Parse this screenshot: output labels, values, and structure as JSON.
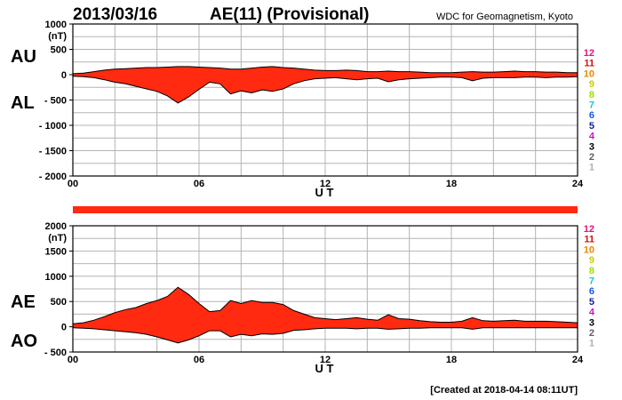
{
  "header": {
    "date": "2013/03/16",
    "title": "AE(11) (Provisional)",
    "source": "WDC for Geomagnetism, Kyoto"
  },
  "footer": {
    "created": "[Created at 2018-04-14 08:11UT]"
  },
  "colors": {
    "fill": "#ff2a10",
    "line": "#000000",
    "grid": "#b4b4b4",
    "band": "#ff2a10"
  },
  "station_legend": [
    {
      "label": "12",
      "color": "#e0157a"
    },
    {
      "label": "11",
      "color": "#d01010"
    },
    {
      "label": "10",
      "color": "#e68a00"
    },
    {
      "label": "9",
      "color": "#d4c800"
    },
    {
      "label": "8",
      "color": "#9be000"
    },
    {
      "label": "7",
      "color": "#14c8dc"
    },
    {
      "label": "6",
      "color": "#1a5ae6"
    },
    {
      "label": "5",
      "color": "#1a1aa0"
    },
    {
      "label": "4",
      "color": "#c814c8"
    },
    {
      "label": "3",
      "color": "#000000"
    },
    {
      "label": "2",
      "color": "#606060"
    },
    {
      "label": "1",
      "color": "#b0b0b0"
    }
  ],
  "chart_data": [
    {
      "type": "area",
      "panel": "AU/AL",
      "upper_label": "AU",
      "lower_label": "AL",
      "unit": "(nT)",
      "xlabel": "U T",
      "xlim": [
        0,
        24
      ],
      "xticks": [
        "00",
        "06",
        "12",
        "18",
        "24"
      ],
      "ylim": [
        -2000,
        1000
      ],
      "yticks": [
        "1000",
        "500",
        "0",
        "- 500",
        "- 1000",
        "- 1500",
        "- 2000"
      ],
      "ytick_values": [
        1000,
        500,
        0,
        -500,
        -1000,
        -1500,
        -2000
      ],
      "grid": true,
      "x": [
        0,
        0.5,
        1,
        1.5,
        2,
        2.5,
        3,
        3.5,
        4,
        4.5,
        5,
        5.5,
        6,
        6.5,
        7,
        7.5,
        8,
        8.5,
        9,
        9.5,
        10,
        10.5,
        11,
        11.5,
        12,
        12.5,
        13,
        13.5,
        14,
        14.5,
        15,
        15.5,
        16,
        16.5,
        17,
        17.5,
        18,
        18.5,
        19,
        19.5,
        20,
        20.5,
        21,
        21.5,
        22,
        22.5,
        23,
        23.5,
        24
      ],
      "series": [
        {
          "name": "AU",
          "values": [
            20,
            30,
            60,
            90,
            110,
            120,
            130,
            140,
            140,
            150,
            160,
            160,
            150,
            140,
            130,
            110,
            110,
            130,
            150,
            160,
            140,
            130,
            110,
            90,
            80,
            80,
            90,
            80,
            60,
            60,
            70,
            60,
            60,
            50,
            40,
            40,
            40,
            50,
            60,
            50,
            50,
            60,
            70,
            60,
            60,
            50,
            50,
            40,
            40
          ]
        },
        {
          "name": "AL",
          "values": [
            -30,
            -40,
            -60,
            -100,
            -150,
            -180,
            -230,
            -280,
            -330,
            -420,
            -560,
            -440,
            -290,
            -150,
            -180,
            -380,
            -320,
            -360,
            -300,
            -330,
            -280,
            -180,
            -120,
            -80,
            -70,
            -60,
            -80,
            -100,
            -80,
            -70,
            -140,
            -100,
            -80,
            -70,
            -60,
            -50,
            -50,
            -60,
            -120,
            -70,
            -60,
            -60,
            -60,
            -50,
            -50,
            -60,
            -50,
            -50,
            -40
          ]
        }
      ]
    },
    {
      "type": "area",
      "panel": "AE/AO",
      "upper_label": "AE",
      "lower_label": "AO",
      "unit": "(nT)",
      "xlabel": "U T",
      "xlim": [
        0,
        24
      ],
      "xticks": [
        "00",
        "06",
        "12",
        "18",
        "24"
      ],
      "ylim": [
        -500,
        2000
      ],
      "yticks": [
        "2000",
        "1500",
        "1000",
        "500",
        "0",
        "- 500"
      ],
      "ytick_values": [
        2000,
        1500,
        1000,
        500,
        0,
        -500
      ],
      "grid": true,
      "x": [
        0,
        0.5,
        1,
        1.5,
        2,
        2.5,
        3,
        3.5,
        4,
        4.5,
        5,
        5.5,
        6,
        6.5,
        7,
        7.5,
        8,
        8.5,
        9,
        9.5,
        10,
        10.5,
        11,
        11.5,
        12,
        12.5,
        13,
        13.5,
        14,
        14.5,
        15,
        15.5,
        16,
        16.5,
        17,
        17.5,
        18,
        18.5,
        19,
        19.5,
        20,
        20.5,
        21,
        21.5,
        22,
        22.5,
        23,
        23.5,
        24
      ],
      "series": [
        {
          "name": "AE",
          "values": [
            60,
            80,
            130,
            200,
            280,
            340,
            380,
            460,
            520,
            600,
            780,
            640,
            460,
            300,
            320,
            520,
            460,
            520,
            480,
            480,
            440,
            320,
            250,
            180,
            160,
            140,
            160,
            180,
            150,
            130,
            240,
            160,
            150,
            120,
            100,
            90,
            90,
            110,
            180,
            120,
            110,
            120,
            130,
            110,
            110,
            110,
            100,
            90,
            80
          ]
        },
        {
          "name": "AO",
          "values": [
            -20,
            -30,
            -40,
            -60,
            -80,
            -100,
            -120,
            -150,
            -200,
            -260,
            -320,
            -260,
            -180,
            -80,
            -80,
            -200,
            -150,
            -180,
            -140,
            -150,
            -130,
            -70,
            -60,
            -40,
            -30,
            -30,
            -30,
            -40,
            -30,
            -30,
            -50,
            -40,
            -30,
            -30,
            -20,
            -20,
            -20,
            -20,
            -50,
            -20,
            -20,
            -20,
            -20,
            -20,
            -20,
            -20,
            -20,
            -20,
            -20
          ]
        }
      ]
    }
  ]
}
